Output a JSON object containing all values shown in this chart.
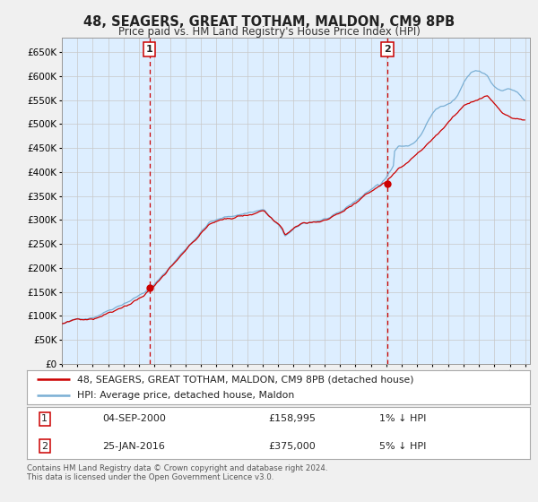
{
  "title": "48, SEAGERS, GREAT TOTHAM, MALDON, CM9 8PB",
  "subtitle": "Price paid vs. HM Land Registry's House Price Index (HPI)",
  "legend_line1": "48, SEAGERS, GREAT TOTHAM, MALDON, CM9 8PB (detached house)",
  "legend_line2": "HPI: Average price, detached house, Maldon",
  "annotation1_date": "04-SEP-2000",
  "annotation1_price": "£158,995",
  "annotation1_hpi": "1% ↓ HPI",
  "annotation1_year": 2000.67,
  "annotation1_value": 158995,
  "annotation2_date": "25-JAN-2016",
  "annotation2_price": "£375,000",
  "annotation2_hpi": "5% ↓ HPI",
  "annotation2_year": 2016.07,
  "annotation2_value": 375000,
  "hpi_color": "#7aafd4",
  "price_color": "#cc0000",
  "bg_color": "#ddeeff",
  "fig_bg_color": "#f0f0f0",
  "footer": "Contains HM Land Registry data © Crown copyright and database right 2024.\nThis data is licensed under the Open Government Licence v3.0.",
  "ylim": [
    0,
    680000
  ],
  "xlim_start": 1995.0,
  "xlim_end": 2025.3
}
